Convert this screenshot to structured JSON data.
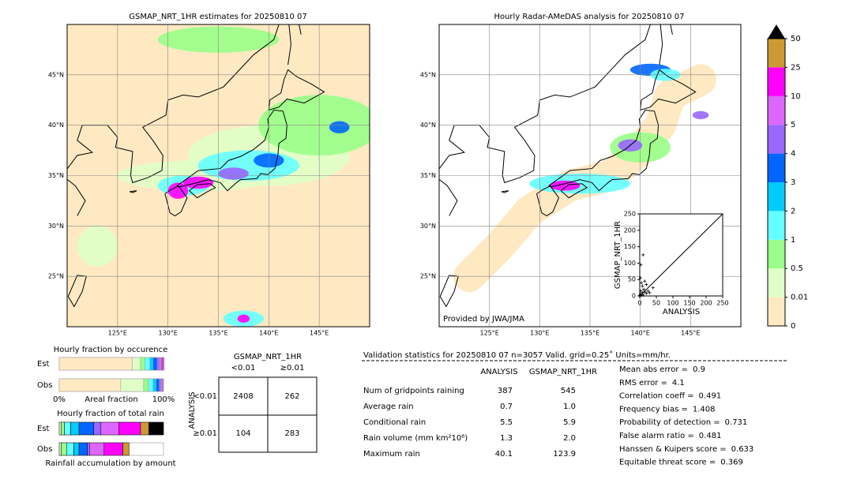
{
  "chart_data": [
    {
      "type": "map",
      "title": "GSMAP_NRT_1HR estimates for 20250810 07",
      "xlim": [
        120,
        150
      ],
      "ylim": [
        20,
        50
      ],
      "xticks": [
        {
          "value": 125,
          "label": "125°E"
        },
        {
          "value": 130,
          "label": "130°E"
        },
        {
          "value": 135,
          "label": "135°E"
        },
        {
          "value": 140,
          "label": "140°E"
        },
        {
          "value": 145,
          "label": "145°E"
        }
      ],
      "yticks": [
        {
          "value": 25,
          "label": "25°N"
        },
        {
          "value": 30,
          "label": "30°N"
        },
        {
          "value": 35,
          "label": "35°N"
        },
        {
          "value": 40,
          "label": "40°N"
        },
        {
          "value": 45,
          "label": "45°N"
        }
      ],
      "grid": true
    },
    {
      "type": "map",
      "title": "Hourly Radar-AMeDAS analysis for 20250810 07",
      "xlim": [
        120,
        150
      ],
      "ylim": [
        20,
        50
      ],
      "xticks": [
        {
          "value": 125,
          "label": "125°E"
        },
        {
          "value": 130,
          "label": "130°E"
        },
        {
          "value": 135,
          "label": "135°E"
        },
        {
          "value": 140,
          "label": "140°E"
        },
        {
          "value": 145,
          "label": "145°E"
        }
      ],
      "yticks": [
        {
          "value": 25,
          "label": "25°N"
        },
        {
          "value": 30,
          "label": "30°N"
        },
        {
          "value": 35,
          "label": "35°N"
        },
        {
          "value": 40,
          "label": "40°N"
        },
        {
          "value": 45,
          "label": "45°N"
        }
      ],
      "grid": true,
      "annotation": "Provided by JWA/JMA"
    },
    {
      "type": "colorbar",
      "levels": [
        0,
        0.01,
        0.5,
        1,
        2,
        3,
        4,
        5,
        10,
        25,
        50
      ],
      "colors": [
        "#fee9c2",
        "#e0ffc8",
        "#99ff88",
        "#66ffff",
        "#00ccff",
        "#0066ff",
        "#9966ff",
        "#dd66ff",
        "#ff00ff",
        "#cc9933"
      ],
      "over_color": "#000000"
    },
    {
      "type": "scatter",
      "x": [
        0,
        1,
        2,
        5,
        8,
        10,
        3,
        12,
        20,
        15,
        5,
        2,
        8,
        25,
        10,
        3,
        15,
        30,
        40,
        20
      ],
      "y": [
        0,
        2,
        5,
        2,
        10,
        3,
        15,
        20,
        8,
        12,
        40,
        55,
        30,
        15,
        125,
        95,
        45,
        10,
        25,
        35
      ],
      "xlim": [
        0,
        250
      ],
      "ylim": [
        0,
        250
      ],
      "xticks": [
        0,
        50,
        100,
        150,
        200,
        250
      ],
      "yticks": [
        0,
        50,
        100,
        150,
        200,
        250
      ],
      "x_label": "ANALYSIS",
      "y_label": "GSMAP_NRT_1HR",
      "color": "#000000"
    },
    {
      "type": "stacked-bar",
      "title": "Hourly fraction by occurence",
      "categories": [
        "Est",
        "Obs"
      ],
      "x_label": "Areal fraction",
      "xlim": [
        0,
        1
      ],
      "xticks": [
        {
          "value": 0,
          "label": "0%"
        },
        {
          "value": 1,
          "label": "100%"
        }
      ],
      "series": [
        {
          "color": "#fee9c2",
          "values": [
            0.7,
            0.59
          ]
        },
        {
          "color": "#e0ffc8",
          "values": [
            0.08,
            0.22
          ]
        },
        {
          "color": "#99ff88",
          "values": [
            0.04,
            0.045
          ]
        },
        {
          "color": "#66ffff",
          "values": [
            0.05,
            0.045
          ]
        },
        {
          "color": "#00ccff",
          "values": [
            0.03,
            0.03
          ]
        },
        {
          "color": "#0066ff",
          "values": [
            0.04,
            0.03
          ]
        },
        {
          "color": "#9966ff",
          "values": [
            0.02,
            0.015
          ]
        },
        {
          "color": "#dd66ff",
          "values": [
            0.02,
            0.015
          ]
        },
        {
          "color": "#ff00ff",
          "values": [
            0.015,
            0.007
          ]
        },
        {
          "color": "#cc9933",
          "values": [
            0.005,
            0.003
          ]
        },
        {
          "color": "#000000",
          "values": [
            0.005,
            0
          ]
        }
      ]
    },
    {
      "type": "stacked-bar",
      "title": "Hourly fraction of total rain",
      "categories": [
        "Est",
        "Obs"
      ],
      "x_label": "Rainfall accumulation by amount",
      "xlim": [
        0,
        1
      ],
      "series": [
        {
          "color": "#fee9c2",
          "values": [
            0,
            0
          ]
        },
        {
          "color": "#e0ffc8",
          "values": [
            0.02,
            0.02
          ]
        },
        {
          "color": "#99ff88",
          "values": [
            0.03,
            0.05
          ]
        },
        {
          "color": "#66ffff",
          "values": [
            0.06,
            0.07
          ]
        },
        {
          "color": "#00ccff",
          "values": [
            0.08,
            0.05
          ]
        },
        {
          "color": "#0066ff",
          "values": [
            0.14,
            0.08
          ]
        },
        {
          "color": "#9966ff",
          "values": [
            0.07,
            0.02
          ]
        },
        {
          "color": "#dd66ff",
          "values": [
            0.17,
            0.14
          ]
        },
        {
          "color": "#ff00ff",
          "values": [
            0.21,
            0.18
          ]
        },
        {
          "color": "#cc9933",
          "values": [
            0.08,
            0.06
          ]
        },
        {
          "color": "#000000",
          "values": [
            0.14,
            0
          ]
        }
      ]
    }
  ],
  "contingency": {
    "title": "GSMAP_NRT_1HR",
    "columns": [
      "<0.01",
      "≥0.01"
    ],
    "row_title": "ANALYSIS",
    "rows": [
      "<0.01",
      "≥0.01"
    ],
    "cells": [
      [
        "2408",
        "262"
      ],
      [
        "104",
        "283"
      ]
    ]
  },
  "statistics": {
    "title": "Validation statistics for 20250810 07  n=3057 Valid. grid=0.25˚ Units=mm/hr.",
    "columns": [
      "ANALYSIS",
      "GSMAP_NRT_1HR"
    ],
    "rows": [
      [
        "Num of gridpoints raining",
        "387",
        "545"
      ],
      [
        "Average rain",
        "0.7",
        "1.0"
      ],
      [
        "Conditional rain",
        "5.5",
        "5.9"
      ],
      [
        "Rain volume (mm km²10⁶)",
        "1.3",
        "2.0"
      ],
      [
        "Maximum rain",
        "40.1",
        "123.9"
      ]
    ],
    "scores": [
      [
        "Mean abs error =",
        "0.9"
      ],
      [
        "RMS error =",
        "4.1"
      ],
      [
        "Correlation coeff =",
        "0.491"
      ],
      [
        "Frequency bias =",
        "1.408"
      ],
      [
        "Probability of detection =",
        "0.731"
      ],
      [
        "False alarm ratio =",
        "0.481"
      ],
      [
        "Hanssen & Kuipers score =",
        "0.633"
      ],
      [
        "Equitable threat score =",
        "0.369"
      ]
    ]
  }
}
